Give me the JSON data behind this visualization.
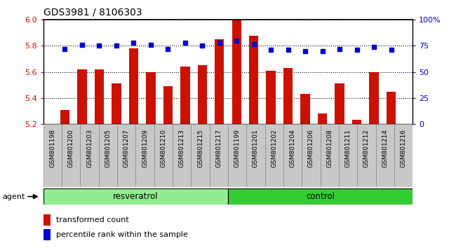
{
  "title": "GDS3981 / 8106303",
  "categories": [
    "GSM801198",
    "GSM801200",
    "GSM801203",
    "GSM801205",
    "GSM801207",
    "GSM801209",
    "GSM801210",
    "GSM801213",
    "GSM801215",
    "GSM801217",
    "GSM801199",
    "GSM801201",
    "GSM801202",
    "GSM801204",
    "GSM801206",
    "GSM801208",
    "GSM801211",
    "GSM801212",
    "GSM801214",
    "GSM801216"
  ],
  "bar_values": [
    5.31,
    5.62,
    5.62,
    5.51,
    5.78,
    5.6,
    5.49,
    5.64,
    5.65,
    5.85,
    6.0,
    5.88,
    5.61,
    5.63,
    5.43,
    5.28,
    5.51,
    5.23,
    5.6,
    5.45
  ],
  "percentile_values": [
    72,
    76,
    75,
    75,
    78,
    76,
    72,
    78,
    75,
    78,
    80,
    77,
    71,
    71,
    70,
    70,
    72,
    71,
    74,
    71
  ],
  "bar_color": "#cc1100",
  "pct_color": "#0000cc",
  "ylim_left": [
    5.2,
    6.0
  ],
  "ylim_right": [
    0,
    100
  ],
  "yticks_left": [
    5.2,
    5.4,
    5.6,
    5.8,
    6.0
  ],
  "yticks_right": [
    0,
    25,
    50,
    75,
    100
  ],
  "ytick_labels_right": [
    "0",
    "25",
    "50",
    "75",
    "100%"
  ],
  "group1_label": "resveratrol",
  "group2_label": "control",
  "group1_color": "#90ee90",
  "group2_color": "#32cd32",
  "agent_label": "agent",
  "legend1": "transformed count",
  "legend2": "percentile rank within the sample",
  "n_group1": 10,
  "n_group2": 10,
  "bar_width": 0.55,
  "cell_bg_color": "#c8c8c8",
  "cell_edge_color": "#888888"
}
